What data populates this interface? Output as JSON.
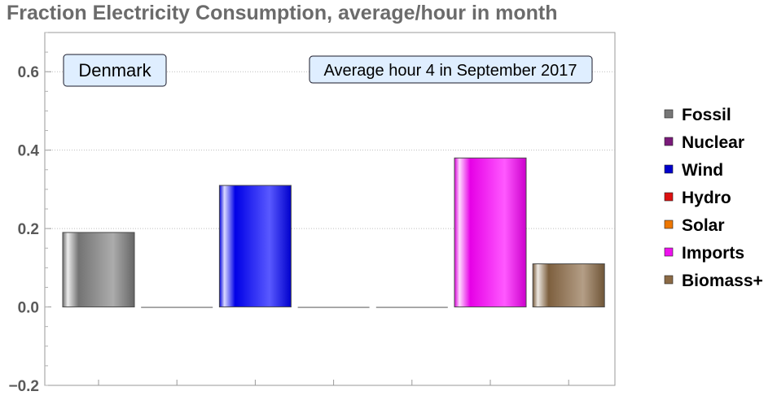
{
  "chart_data": {
    "type": "bar",
    "title": "Fraction Electricity Consumption, average/hour in month",
    "region_label": "Denmark",
    "period_label": "Average hour 4 in September 2017",
    "categories": [
      "Fossil",
      "Nuclear",
      "Wind",
      "Hydro",
      "Solar",
      "Imports",
      "Biomass+"
    ],
    "values": [
      0.19,
      0.0,
      0.31,
      0.0,
      0.0,
      0.38,
      0.11
    ],
    "colors": [
      "#808080",
      "#800080",
      "#0000ff",
      "#ff0000",
      "#ff8c00",
      "#ff00ff",
      "#8b6a45"
    ],
    "legend_colors": [
      "#777777",
      "#7a1a7a",
      "#0000cc",
      "#dd1111",
      "#ee7700",
      "#ee11ee",
      "#8b6a45"
    ],
    "ylim": [
      -0.2,
      0.7
    ],
    "yticks": [
      -0.2,
      0.0,
      0.2,
      0.4,
      0.6
    ],
    "ytick_labels": [
      "−0.2",
      "0.0",
      "0.2",
      "0.4",
      "0.6"
    ],
    "grid": true,
    "legend_position": "right"
  }
}
